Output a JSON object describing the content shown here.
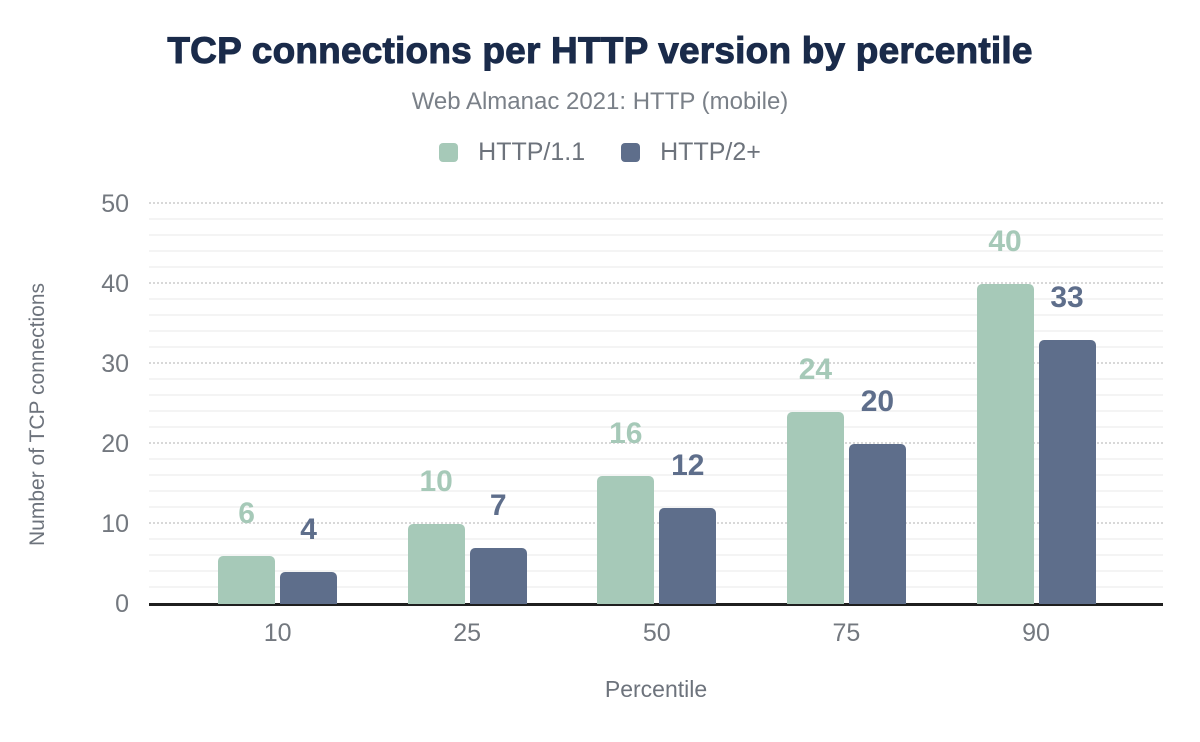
{
  "chart_data": {
    "type": "bar",
    "title": "TCP connections per HTTP version by percentile",
    "subtitle": "Web Almanac 2021: HTTP (mobile)",
    "categories": [
      "10",
      "25",
      "50",
      "75",
      "90"
    ],
    "series": [
      {
        "name": "HTTP/1.1",
        "color": "#a6c9b8",
        "values": [
          6,
          10,
          16,
          24,
          40
        ]
      },
      {
        "name": "HTTP/2+",
        "color": "#5e6e8b",
        "values": [
          4,
          7,
          12,
          20,
          33
        ]
      }
    ],
    "xlabel": "Percentile",
    "ylabel": "Number of TCP connections",
    "ylim": [
      0,
      50
    ],
    "yticks": [
      0,
      10,
      20,
      30,
      40,
      50
    ],
    "grid": {
      "major_interval": 10,
      "minor_interval": 2,
      "major_style": "dotted",
      "minor_style": "solid"
    },
    "legend_position": "top",
    "data_labels": true,
    "colors": {
      "title": "#1a2b4a",
      "subtitle": "#7a8088",
      "axis_text": "#73787f",
      "axis_line": "#1f1f1f",
      "major_grid": "#d8d8d8",
      "minor_grid": "#f4f4f4",
      "background": "#ffffff"
    }
  }
}
